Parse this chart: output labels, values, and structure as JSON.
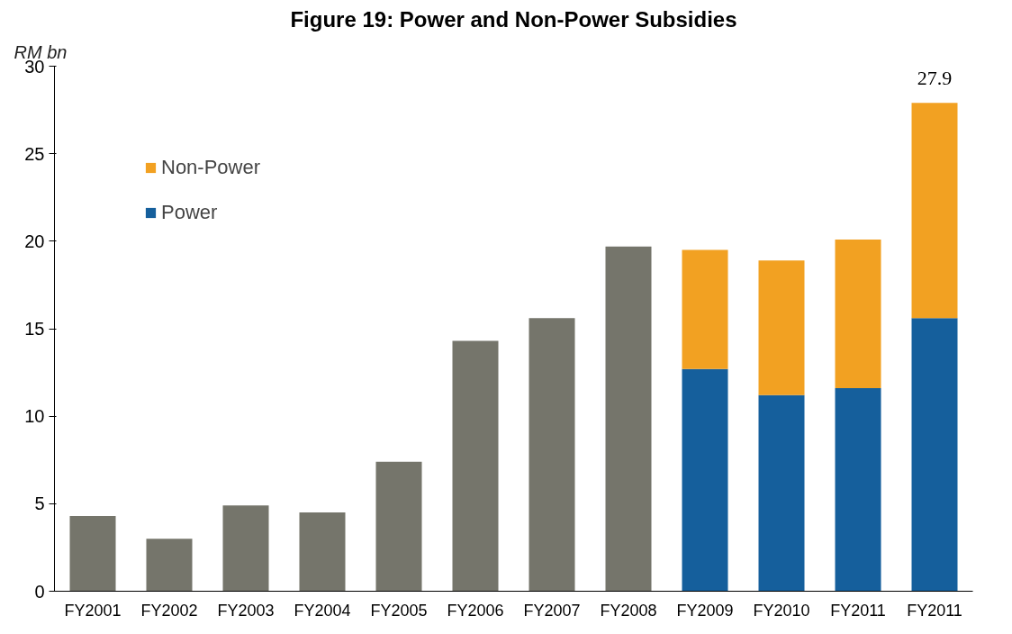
{
  "chart_data": {
    "type": "bar",
    "stacked": true,
    "title": "Figure 19: Power and Non-Power Subsidies",
    "ylabel": "RM bn",
    "categories": [
      "FY2001",
      "FY2002",
      "FY2003",
      "FY2004",
      "FY2005",
      "FY2006",
      "FY2007",
      "FY2008",
      "FY2009",
      "FY2010",
      "FY2011",
      "FY2011"
    ],
    "series": [
      {
        "color": "#75756b",
        "values": [
          4.3,
          3.0,
          4.9,
          4.5,
          7.4,
          14.3,
          15.6,
          19.7,
          null,
          null,
          null,
          null
        ]
      },
      {
        "name": "Power",
        "color": "#155f9c",
        "values": [
          null,
          null,
          null,
          null,
          null,
          null,
          null,
          null,
          12.7,
          11.2,
          11.6,
          15.6
        ]
      },
      {
        "name": "Non-Power",
        "color": "#f2a122",
        "values": [
          null,
          null,
          null,
          null,
          null,
          null,
          null,
          null,
          6.8,
          7.7,
          8.5,
          12.3
        ]
      }
    ],
    "totals": [
      null,
      null,
      null,
      null,
      null,
      null,
      null,
      null,
      null,
      null,
      null,
      "27.9"
    ],
    "ylim": [
      0,
      30
    ],
    "yticks": [
      0,
      5,
      10,
      15,
      20,
      25,
      30
    ],
    "grid": false,
    "legend": "top left"
  }
}
